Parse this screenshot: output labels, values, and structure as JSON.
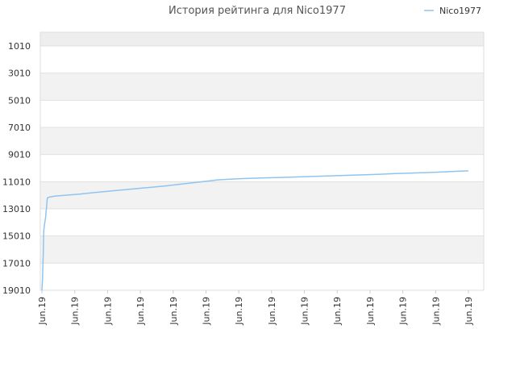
{
  "chart_data": {
    "type": "line",
    "title": "История рейтинга для Nico1977",
    "xlabel": "",
    "ylabel": "",
    "y_inverted": true,
    "ylim": [
      0,
      19010
    ],
    "y_ticks": [
      1010,
      3010,
      5010,
      7010,
      9010,
      11010,
      13010,
      15010,
      17010,
      19010
    ],
    "x_tick_labels": [
      "Jun.19",
      "Jun.19",
      "Jun.19",
      "Jun.19",
      "Jun.19",
      "Jun.19",
      "Jun.19",
      "Jun.19",
      "Jun.19",
      "Jun.19",
      "Jun.19",
      "Jun.19",
      "Jun.19",
      "Jun.19"
    ],
    "legend": {
      "position": "top-right"
    },
    "grid": true,
    "series": [
      {
        "name": "Nico1977",
        "color": "#90c4f0",
        "points": [
          [
            0.0,
            19010
          ],
          [
            0.5,
            18100
          ],
          [
            0.8,
            17200
          ],
          [
            1.0,
            16500
          ],
          [
            1.2,
            15600
          ],
          [
            1.5,
            14600
          ],
          [
            2.0,
            14200
          ],
          [
            2.5,
            13900
          ],
          [
            3.0,
            13600
          ],
          [
            3.3,
            13200
          ],
          [
            3.7,
            12900
          ],
          [
            4.0,
            12500
          ],
          [
            4.4,
            12200
          ],
          [
            6.0,
            12150
          ],
          [
            10.0,
            12080
          ],
          [
            20.0,
            12000
          ],
          [
            30.0,
            11920
          ],
          [
            40.0,
            11830
          ],
          [
            50.0,
            11740
          ],
          [
            60.0,
            11650
          ],
          [
            70.0,
            11570
          ],
          [
            80.0,
            11480
          ],
          [
            90.0,
            11400
          ],
          [
            100.0,
            11310
          ],
          [
            110.0,
            11200
          ],
          [
            120.0,
            11090
          ],
          [
            130.0,
            10990
          ],
          [
            140.0,
            10880
          ],
          [
            150.0,
            10830
          ],
          [
            160.0,
            10780
          ],
          [
            170.0,
            10750
          ],
          [
            180.0,
            10720
          ],
          [
            190.0,
            10700
          ],
          [
            200.0,
            10670
          ],
          [
            210.0,
            10640
          ],
          [
            220.0,
            10610
          ],
          [
            230.0,
            10580
          ],
          [
            240.0,
            10550
          ],
          [
            250.0,
            10520
          ],
          [
            260.0,
            10490
          ],
          [
            270.0,
            10460
          ],
          [
            280.0,
            10420
          ],
          [
            290.0,
            10390
          ],
          [
            300.0,
            10360
          ],
          [
            310.0,
            10330
          ],
          [
            320.0,
            10290
          ],
          [
            330.0,
            10250
          ],
          [
            340.0,
            10210
          ]
        ]
      }
    ]
  }
}
